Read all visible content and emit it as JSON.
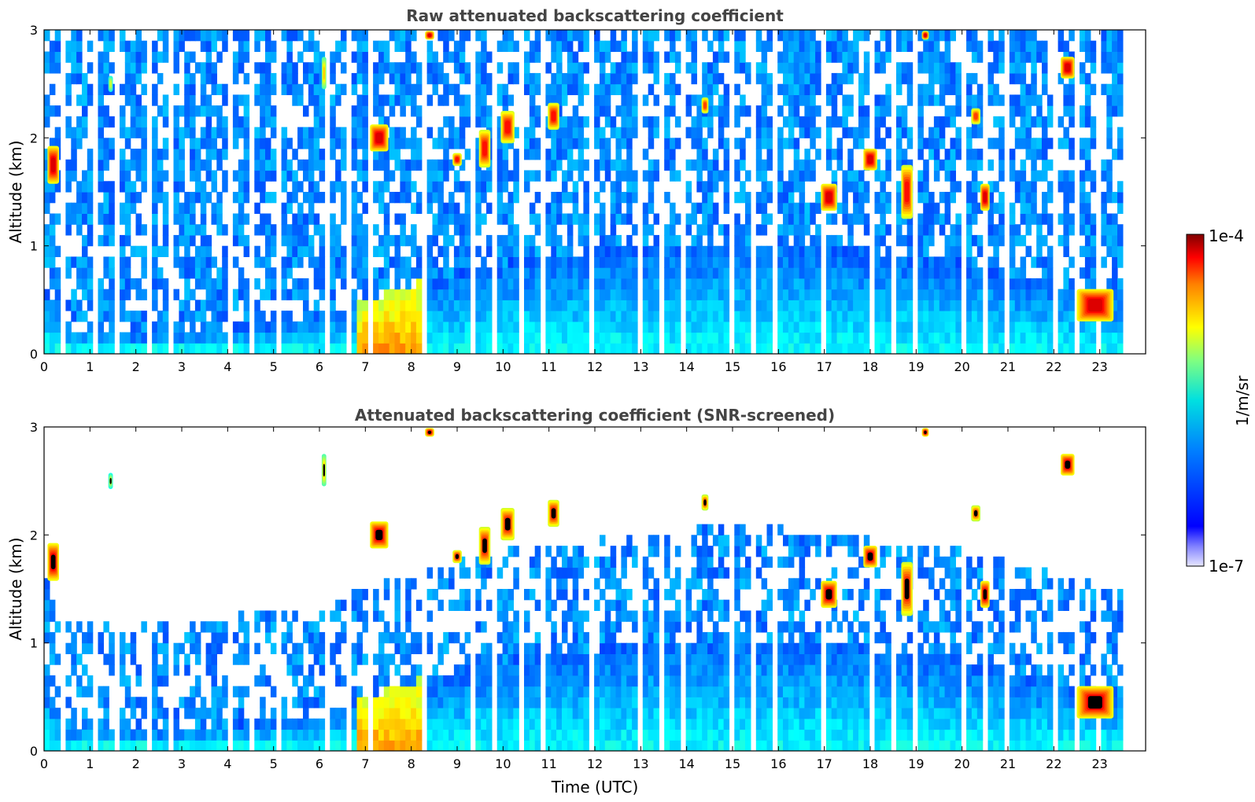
{
  "chart_data": [
    {
      "type": "heatmap",
      "title": "Raw attenuated backscattering coefficient",
      "xlabel": "",
      "ylabel": "Altitude (km)",
      "xlim": [
        0,
        24
      ],
      "ylim": [
        0,
        3
      ],
      "xticks": [
        "0",
        "1",
        "2",
        "3",
        "4",
        "5",
        "6",
        "7",
        "8",
        "9",
        "10",
        "11",
        "12",
        "13",
        "14",
        "15",
        "16",
        "17",
        "18",
        "19",
        "20",
        "21",
        "22",
        "23"
      ],
      "yticks": [
        "0",
        "1",
        "2",
        "3"
      ],
      "screened": false
    },
    {
      "type": "heatmap",
      "title": "Attenuated backscattering coefficient (SNR-screened)",
      "xlabel": "Time (UTC)",
      "ylabel": "Altitude (km)",
      "xlim": [
        0,
        24
      ],
      "ylim": [
        0,
        3
      ],
      "xticks": [
        "0",
        "1",
        "2",
        "3",
        "4",
        "5",
        "6",
        "7",
        "8",
        "9",
        "10",
        "11",
        "12",
        "13",
        "14",
        "15",
        "16",
        "17",
        "18",
        "19",
        "20",
        "21",
        "22",
        "23"
      ],
      "yticks": [
        "0",
        "1",
        "2",
        "3"
      ],
      "screened": true
    }
  ],
  "colorbar": {
    "label": "1/m/sr",
    "max_label": "1e-4",
    "min_label": "1e-7",
    "colormap": "jet"
  },
  "features": {
    "boundary_layer_top_km": [
      [
        0.0,
        0.55
      ],
      [
        0.5,
        0.15
      ],
      [
        1.0,
        0.2
      ],
      [
        2.0,
        0.12
      ],
      [
        3.0,
        0.15
      ],
      [
        4.0,
        0.2
      ],
      [
        5.0,
        0.22
      ],
      [
        6.0,
        0.3
      ],
      [
        7.0,
        0.45
      ],
      [
        8.0,
        0.6
      ],
      [
        9.0,
        0.7
      ],
      [
        10.0,
        0.8
      ],
      [
        12.0,
        0.9
      ],
      [
        14.0,
        1.0
      ],
      [
        16.0,
        1.0
      ],
      [
        18.0,
        0.9
      ],
      [
        20.0,
        0.8
      ],
      [
        22.0,
        0.6
      ],
      [
        23.5,
        0.45
      ]
    ],
    "cloud_patches": [
      {
        "t": 0.2,
        "z": 1.75,
        "w": 0.25,
        "h": 0.35,
        "level": 0.95
      },
      {
        "t": 1.45,
        "z": 2.5,
        "w": 0.1,
        "h": 0.15,
        "level": 0.6
      },
      {
        "t": 6.1,
        "z": 2.6,
        "w": 0.1,
        "h": 0.3,
        "level": 0.7
      },
      {
        "t": 7.3,
        "z": 2.0,
        "w": 0.4,
        "h": 0.25,
        "level": 0.95
      },
      {
        "t": 8.4,
        "z": 2.95,
        "w": 0.2,
        "h": 0.08,
        "level": 0.95
      },
      {
        "t": 9.0,
        "z": 1.8,
        "w": 0.2,
        "h": 0.12,
        "level": 0.9
      },
      {
        "t": 9.6,
        "z": 1.9,
        "w": 0.25,
        "h": 0.35,
        "level": 0.9
      },
      {
        "t": 10.1,
        "z": 2.1,
        "w": 0.3,
        "h": 0.3,
        "level": 0.9
      },
      {
        "t": 11.1,
        "z": 2.2,
        "w": 0.25,
        "h": 0.25,
        "level": 0.9
      },
      {
        "t": 14.4,
        "z": 2.3,
        "w": 0.15,
        "h": 0.15,
        "level": 0.85
      },
      {
        "t": 17.1,
        "z": 1.45,
        "w": 0.35,
        "h": 0.25,
        "level": 0.95
      },
      {
        "t": 18.0,
        "z": 1.8,
        "w": 0.3,
        "h": 0.2,
        "level": 0.95
      },
      {
        "t": 18.8,
        "z": 1.5,
        "w": 0.25,
        "h": 0.5,
        "level": 0.9
      },
      {
        "t": 19.2,
        "z": 2.95,
        "w": 0.15,
        "h": 0.08,
        "level": 0.95
      },
      {
        "t": 20.3,
        "z": 2.2,
        "w": 0.2,
        "h": 0.15,
        "level": 0.85
      },
      {
        "t": 20.5,
        "z": 1.45,
        "w": 0.2,
        "h": 0.25,
        "level": 0.95
      },
      {
        "t": 22.3,
        "z": 2.65,
        "w": 0.3,
        "h": 0.2,
        "level": 0.95
      },
      {
        "t": 22.9,
        "z": 0.45,
        "w": 0.8,
        "h": 0.3,
        "level": 0.95
      }
    ],
    "data_gaps_utc": [
      [
        0.32,
        0.4
      ],
      [
        1.05,
        1.15
      ],
      [
        1.5,
        1.6
      ],
      [
        2.2,
        2.28
      ],
      [
        2.7,
        2.78
      ],
      [
        3.3,
        3.4
      ],
      [
        3.9,
        4.0
      ],
      [
        4.45,
        4.55
      ],
      [
        5.0,
        5.08
      ],
      [
        5.45,
        5.52
      ],
      [
        6.05,
        6.12
      ],
      [
        6.55,
        6.62
      ],
      [
        7.05,
        7.12
      ],
      [
        7.55,
        7.62
      ],
      [
        8.15,
        8.25
      ],
      [
        8.7,
        8.78
      ],
      [
        9.25,
        9.33
      ],
      [
        9.75,
        9.83
      ],
      [
        10.3,
        10.38
      ],
      [
        10.8,
        10.88
      ],
      [
        11.3,
        11.38
      ],
      [
        11.85,
        11.93
      ],
      [
        12.35,
        12.43
      ],
      [
        12.85,
        12.93
      ],
      [
        13.35,
        13.43
      ],
      [
        13.85,
        13.93
      ],
      [
        14.35,
        14.43
      ],
      [
        14.85,
        14.93
      ],
      [
        15.35,
        15.43
      ],
      [
        15.85,
        15.93
      ],
      [
        16.35,
        16.43
      ],
      [
        16.9,
        16.98
      ],
      [
        17.4,
        17.48
      ],
      [
        17.9,
        17.98
      ],
      [
        18.4,
        18.48
      ],
      [
        18.9,
        18.98
      ],
      [
        19.4,
        19.48
      ],
      [
        19.9,
        19.98
      ],
      [
        20.4,
        20.48
      ],
      [
        20.9,
        20.98
      ],
      [
        21.4,
        21.48
      ],
      [
        21.9,
        21.98
      ],
      [
        22.4,
        22.48
      ],
      [
        22.9,
        22.98
      ],
      [
        23.4,
        24.0
      ]
    ]
  }
}
